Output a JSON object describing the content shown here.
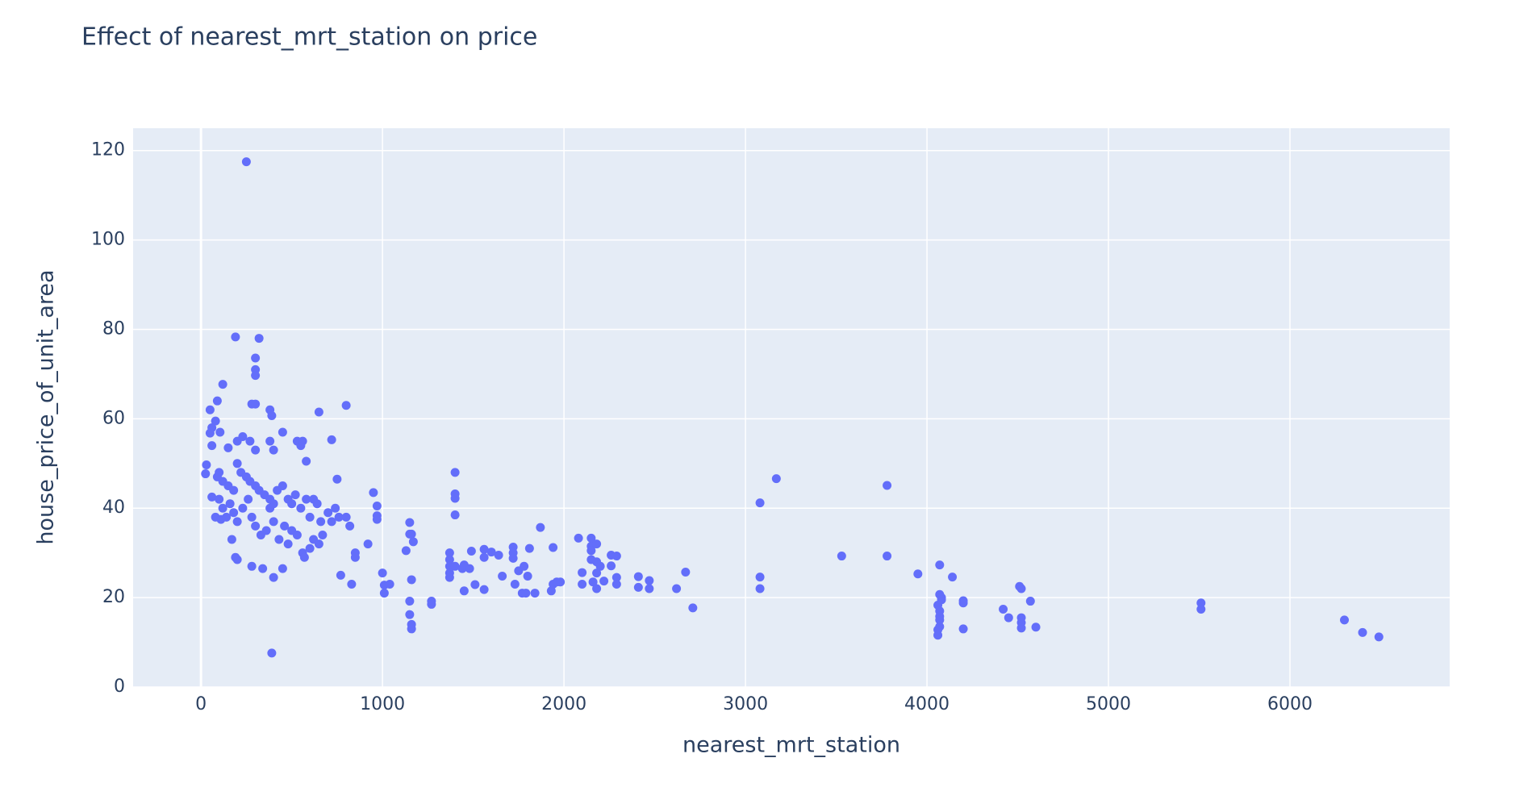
{
  "chart_data": {
    "type": "scatter",
    "title": "Effect of nearest_mrt_station on price",
    "x_label": "nearest_mrt_station",
    "y_label": "house_price_of_unit_area",
    "color": "#636efa",
    "grid": true,
    "xlim": [
      -374,
      6880
    ],
    "xticks": [
      0,
      1000,
      2000,
      3000,
      4000,
      5000,
      6000
    ],
    "ylim": [
      0,
      125
    ],
    "yticks": [
      0,
      20,
      40,
      60,
      80,
      100,
      120
    ],
    "x": [
      250,
      390,
      190,
      320,
      120,
      300,
      300,
      300,
      280,
      300,
      380,
      390,
      650,
      800,
      50,
      90,
      80,
      105,
      60,
      50,
      60,
      150,
      200,
      230,
      270,
      300,
      380,
      400,
      450,
      530,
      550,
      560,
      580,
      720,
      750,
      30,
      25,
      90,
      100,
      120,
      150,
      180,
      200,
      220,
      250,
      270,
      300,
      320,
      350,
      380,
      400,
      420,
      450,
      480,
      500,
      520,
      550,
      580,
      600,
      620,
      640,
      660,
      700,
      720,
      740,
      760,
      800,
      820,
      100,
      120,
      140,
      160,
      180,
      200,
      230,
      260,
      280,
      300,
      330,
      360,
      380,
      400,
      430,
      460,
      480,
      500,
      530,
      560,
      570,
      600,
      620,
      650,
      670,
      60,
      80,
      110,
      170,
      190,
      200,
      280,
      340,
      400,
      450,
      770,
      830,
      850,
      850,
      920,
      950,
      970,
      970,
      970,
      1000,
      1010,
      1010,
      1040,
      1130,
      1150,
      1150,
      1160,
      1170,
      1160,
      1150,
      1150,
      1160,
      1160,
      1270,
      1270,
      1370,
      1370,
      1370,
      1370,
      1370,
      1400,
      1400,
      1400,
      1400,
      1400,
      1440,
      1450,
      1450,
      1480,
      1490,
      1510,
      1560,
      1560,
      1560,
      1600,
      1640,
      1660,
      1720,
      1720,
      1720,
      1730,
      1750,
      1770,
      1780,
      1790,
      1800,
      1810,
      1840,
      1870,
      1930,
      1940,
      1940,
      1960,
      1980,
      2080,
      2100,
      2100,
      2150,
      2150,
      2150,
      2150,
      2160,
      2180,
      2180,
      2180,
      2180,
      2200,
      2220,
      2260,
      2260,
      2290,
      2290,
      2290,
      2410,
      2410,
      2470,
      2470,
      2620,
      2670,
      2710,
      3080,
      3080,
      3080,
      3170,
      3530,
      3780,
      3780,
      3950,
      4070,
      4070,
      4080,
      4060,
      4070,
      4070,
      4070,
      4070,
      4060,
      4060,
      4080,
      4140,
      4200,
      4200,
      4200,
      4420,
      4450,
      4510,
      4520,
      4520,
      4520,
      4520,
      4570,
      4600,
      5510,
      5510,
      6300,
      6400,
      6490
    ],
    "y": [
      117.5,
      7.6,
      78.3,
      78,
      67.7,
      73.6,
      71,
      69.7,
      63.3,
      63.3,
      62,
      60.7,
      61.5,
      63,
      62,
      64,
      59.5,
      57,
      58,
      56.8,
      54,
      53.5,
      55,
      56,
      55,
      53,
      55,
      53,
      57,
      55,
      54,
      55,
      50.5,
      55.3,
      46.5,
      49.7,
      47.7,
      47,
      48,
      46,
      45,
      44,
      50,
      48,
      47,
      46,
      45,
      44,
      43,
      42,
      41,
      44,
      45,
      42,
      41,
      43,
      40,
      42,
      38,
      42,
      41,
      37,
      39,
      37,
      40,
      38,
      38,
      36,
      42,
      40,
      38,
      41,
      39,
      37,
      40,
      42,
      38,
      36,
      34,
      35,
      40,
      37,
      33,
      36,
      32,
      35,
      34,
      30,
      29,
      31,
      33,
      32,
      34,
      42.5,
      38,
      37.5,
      33,
      29,
      28.5,
      27,
      26.5,
      24.5,
      26.5,
      25,
      23,
      29,
      30,
      32,
      43.5,
      40.5,
      38.3,
      37.5,
      25.5,
      22.8,
      21,
      23,
      30.5,
      36.8,
      34.2,
      34.2,
      32.5,
      24,
      19.2,
      16.2,
      14,
      13,
      19.2,
      18.5,
      30,
      28.5,
      27,
      25.5,
      24.5,
      48,
      43.2,
      42.2,
      38.5,
      27,
      26.5,
      27.3,
      21.5,
      26.5,
      30.4,
      22.9,
      30.8,
      29,
      21.8,
      30.2,
      29.5,
      24.8,
      31.3,
      30,
      28.8,
      23,
      26,
      21,
      27,
      21,
      24.8,
      31,
      21,
      35.7,
      21.5,
      23,
      31.2,
      23.5,
      23.5,
      33.3,
      25.6,
      23,
      33.3,
      31.5,
      30.5,
      28.5,
      23.5,
      32,
      28,
      22,
      25.5,
      27,
      23.7,
      29.5,
      27.1,
      29.3,
      24.5,
      23,
      24.7,
      22.3,
      23.8,
      22,
      22,
      25.7,
      17.7,
      41.2,
      24.6,
      22,
      46.6,
      29.3,
      29.3,
      45.1,
      25.3,
      27.3,
      20.7,
      20,
      18.3,
      17,
      15.8,
      15,
      13.5,
      12.8,
      11.6,
      19.5,
      24.6,
      19.3,
      18.8,
      13,
      17.4,
      15.5,
      22.5,
      22,
      15.5,
      14.4,
      13.2,
      19.2,
      13.4,
      18.8,
      17.4,
      15,
      12.2,
      11.2
    ]
  }
}
